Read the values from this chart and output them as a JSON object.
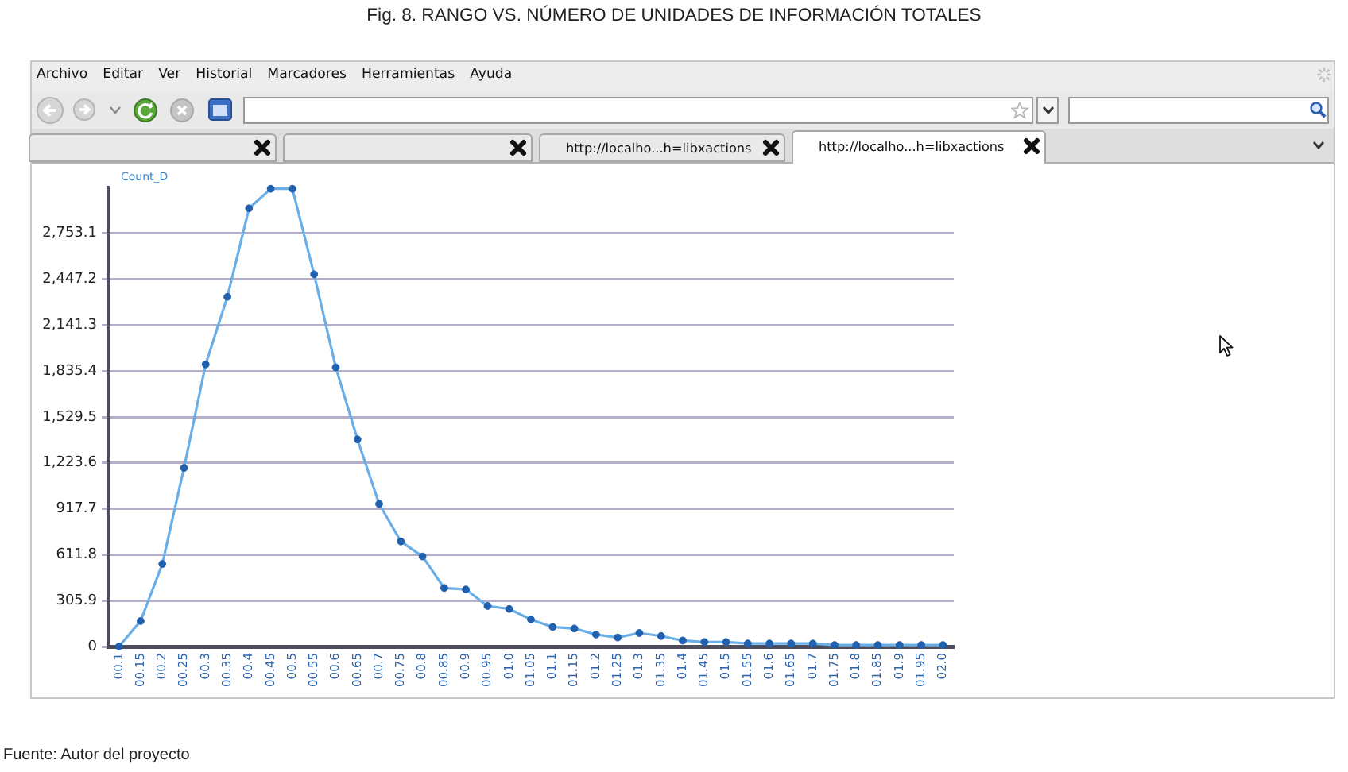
{
  "chart_data": {
    "type": "line",
    "title": "Fig. 8. RANGO VS. NÚMERO DE UNIDADES DE INFORMACIÓN TOTALES",
    "ylabel": "Count_D",
    "categories": [
      "00.1",
      "00.15",
      "00.2",
      "00.25",
      "00.3",
      "00.35",
      "00.4",
      "00.45",
      "00.5",
      "00.55",
      "00.6",
      "00.65",
      "00.7",
      "00.75",
      "00.8",
      "00.85",
      "00.9",
      "00.95",
      "01.0",
      "01.05",
      "01.1",
      "01.15",
      "01.2",
      "01.25",
      "01.3",
      "01.35",
      "01.4",
      "01.45",
      "01.5",
      "01.55",
      "01.6",
      "01.65",
      "01.7",
      "01.75",
      "01.8",
      "01.85",
      "01.9",
      "01.95",
      "02.0"
    ],
    "values": [
      0,
      170,
      550,
      1190,
      1880,
      2330,
      2920,
      3050,
      3050,
      2480,
      1860,
      1380,
      950,
      700,
      600,
      390,
      380,
      270,
      250,
      180,
      130,
      120,
      80,
      60,
      90,
      70,
      40,
      30,
      30,
      20,
      20,
      20,
      20,
      10,
      10,
      10,
      10,
      10,
      10
    ],
    "color": "#6aaee8",
    "ylim": [
      0,
      3059
    ],
    "yticks": [
      0,
      305.9,
      611.8,
      917.7,
      {
        "value": 1223.6,
        "label": "1,223.6"
      },
      {
        "value": 1529.5,
        "label": "1,529.5"
      },
      {
        "value": 1835.4,
        "label": "1,835.4"
      },
      {
        "value": 2141.3,
        "label": "2,141.3"
      },
      {
        "value": 2447.2,
        "label": "2,447.2"
      },
      {
        "value": 2753.1,
        "label": "2,753.1"
      }
    ],
    "grid": "y",
    "marker": "circle",
    "line_style": "solid",
    "annotations": [
      "Archivo",
      "Editar",
      "Ver",
      "Historial",
      "Marcadores",
      "Herramientas",
      "Ayuda",
      "http://localho...h=libxactions",
      "http://localho...h=libxactions",
      "Fuente: Autor del proyecto"
    ]
  }
}
